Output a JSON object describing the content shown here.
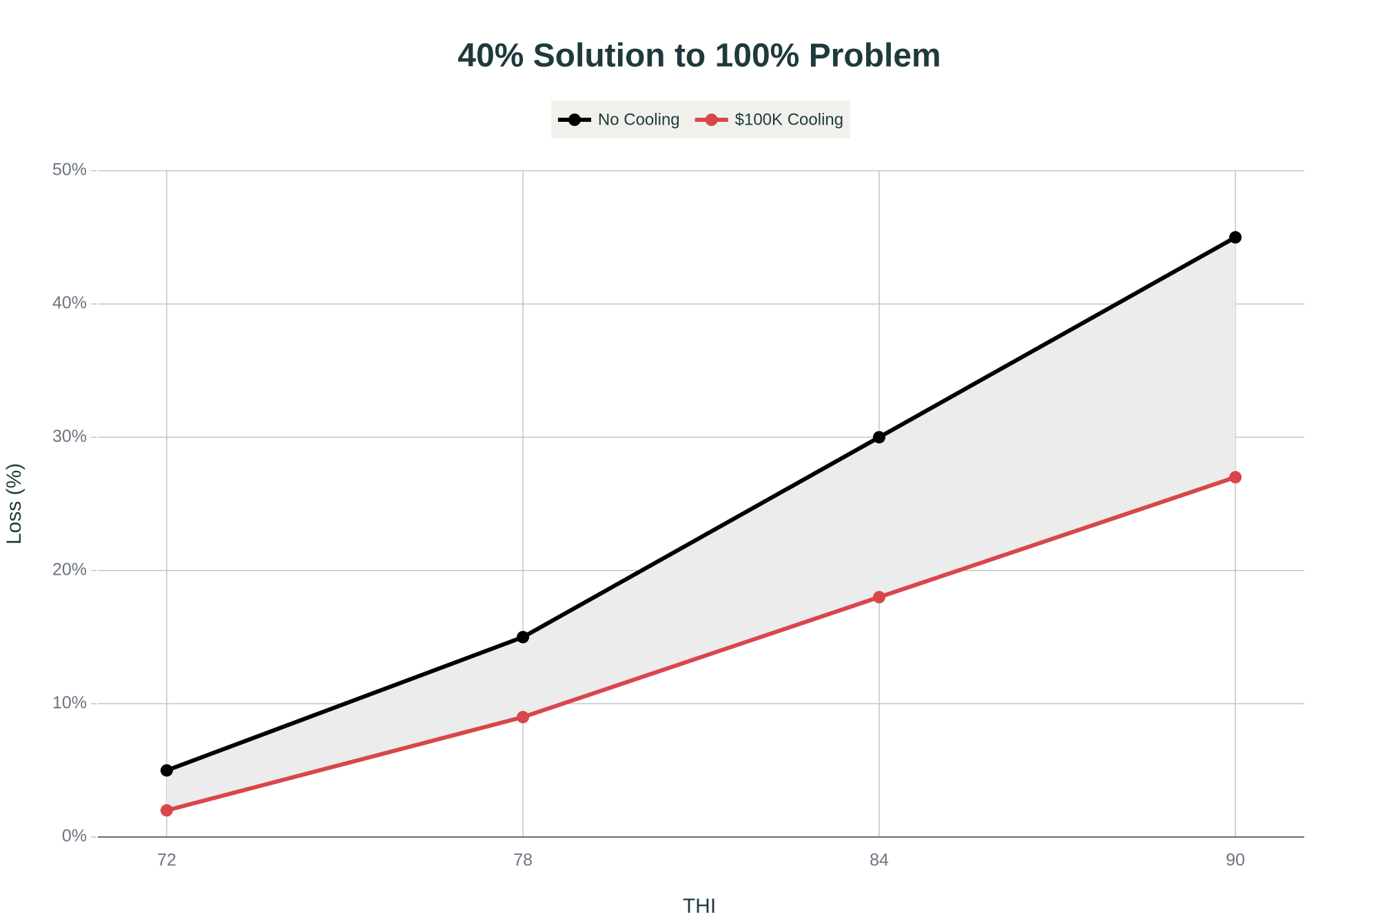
{
  "chart_data": {
    "type": "line",
    "title": "40% Solution to 100% Problem",
    "x_label": "THI",
    "y_label": "Loss (%)",
    "x": [
      72,
      78,
      84,
      90
    ],
    "series": [
      {
        "name": "No Cooling",
        "color": "#000000",
        "values": [
          5,
          15,
          30,
          45
        ]
      },
      {
        "name": "$100K Cooling",
        "color": "#d9464a",
        "values": [
          2,
          9,
          18,
          27
        ]
      }
    ],
    "xlim": [
      70.84,
      91.16
    ],
    "xticks": [
      72,
      78,
      84,
      90
    ],
    "ylim": [
      0,
      50
    ],
    "yticks": [
      {
        "value": 0,
        "label": "0%"
      },
      {
        "value": 10,
        "label": "10%"
      },
      {
        "value": 20,
        "label": "20%"
      },
      {
        "value": 30,
        "label": "30%"
      },
      {
        "value": 40,
        "label": "40%"
      },
      {
        "value": 50,
        "label": "50%"
      }
    ],
    "grid": true,
    "fill_between": true,
    "legend": "top"
  }
}
